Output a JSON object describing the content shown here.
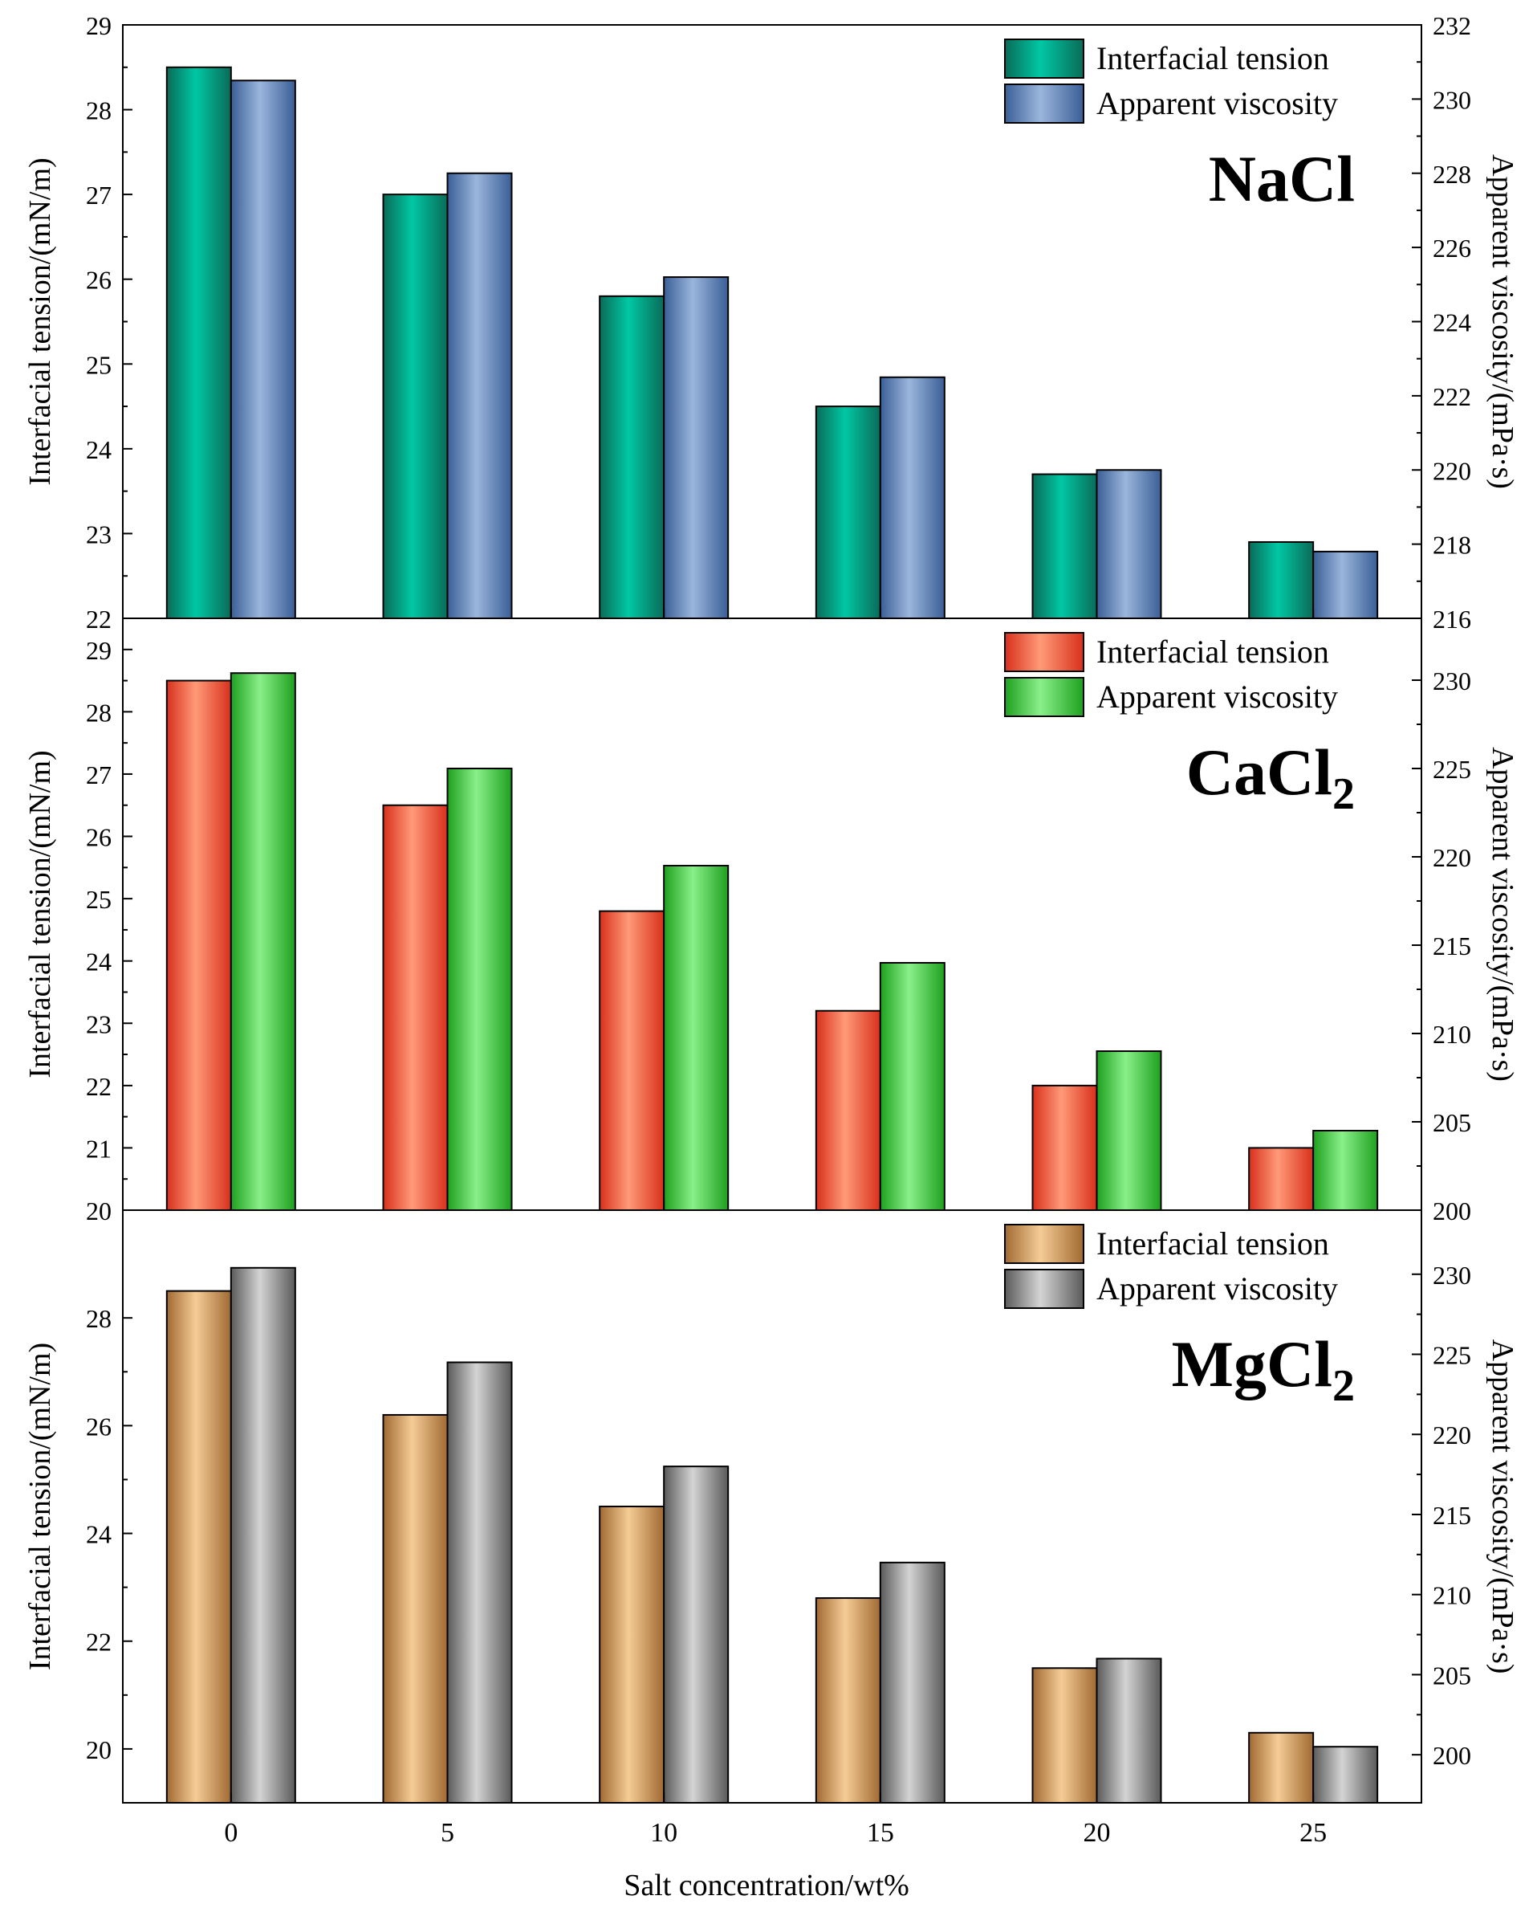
{
  "xlabel": "Salt concentration/wt%",
  "categories": [
    "0",
    "5",
    "10",
    "15",
    "20",
    "25"
  ],
  "chart_data": [
    {
      "type": "bar",
      "title": "NaCl",
      "title_sub": "",
      "categories": [
        "0",
        "5",
        "10",
        "15",
        "20",
        "25"
      ],
      "xlabel": "Salt concentration/wt%",
      "ylabel_left": "Interfacial tension/(mN/m)",
      "ylabel_right": "Apparent viscosity/(mPa·s)",
      "ylim_left": [
        22,
        29
      ],
      "ylim_right": [
        216,
        232
      ],
      "yticks_left": [
        22,
        23,
        24,
        25,
        26,
        27,
        28,
        29
      ],
      "yticks_right": [
        216,
        218,
        220,
        222,
        224,
        226,
        228,
        230,
        232
      ],
      "legend_position": "top-right",
      "series": [
        {
          "name": "Interfacial tension",
          "axis": "left",
          "values": [
            28.5,
            27.0,
            25.8,
            24.5,
            23.7,
            22.9
          ],
          "colors": [
            "#0a6b58",
            "#00c8a4",
            "#0a6b58"
          ]
        },
        {
          "name": "Apparent viscosity",
          "axis": "right",
          "values": [
            230.5,
            228.0,
            225.2,
            222.5,
            220.0,
            217.8
          ],
          "colors": [
            "#3a5e96",
            "#9ab6dc",
            "#3a5e96"
          ]
        }
      ]
    },
    {
      "type": "bar",
      "title": "CaCl",
      "title_sub": "2",
      "categories": [
        "0",
        "5",
        "10",
        "15",
        "20",
        "25"
      ],
      "xlabel": "Salt concentration/wt%",
      "ylabel_left": "Interfacial tension/(mN/m)",
      "ylabel_right": "Apparent viscosity/(mPa·s)",
      "ylim_left": [
        20,
        29.5
      ],
      "ylim_right": [
        200,
        233.5
      ],
      "yticks_left": [
        20,
        21,
        22,
        23,
        24,
        25,
        26,
        27,
        28,
        29
      ],
      "yticks_right": [
        200,
        205,
        210,
        215,
        220,
        225,
        230
      ],
      "legend_position": "top-right",
      "series": [
        {
          "name": "Interfacial tension",
          "axis": "left",
          "values": [
            28.5,
            26.5,
            24.8,
            23.2,
            22.0,
            21.0
          ],
          "colors": [
            "#d8301c",
            "#ff9a78",
            "#d8301c"
          ]
        },
        {
          "name": "Apparent viscosity",
          "axis": "right",
          "values": [
            230.4,
            225.0,
            219.5,
            214.0,
            209.0,
            204.5
          ],
          "colors": [
            "#1ea01e",
            "#8af08a",
            "#1ea01e"
          ]
        }
      ]
    },
    {
      "type": "bar",
      "title": "MgCl",
      "title_sub": "2",
      "categories": [
        "0",
        "5",
        "10",
        "15",
        "20",
        "25"
      ],
      "xlabel": "Salt concentration/wt%",
      "ylabel_left": "Interfacial tension/(mN/m)",
      "ylabel_right": "Apparent viscosity/(mPa·s)",
      "ylim_left": [
        19,
        30
      ],
      "ylim_right": [
        197,
        234
      ],
      "yticks_left": [
        20,
        22,
        24,
        26,
        28
      ],
      "yticks_right": [
        200,
        205,
        210,
        215,
        220,
        225,
        230
      ],
      "legend_position": "top-right",
      "series": [
        {
          "name": "Interfacial tension",
          "axis": "left",
          "values": [
            28.5,
            26.2,
            24.5,
            22.8,
            21.5,
            20.3
          ],
          "colors": [
            "#a06a32",
            "#f6cc96",
            "#a06a32"
          ]
        },
        {
          "name": "Apparent viscosity",
          "axis": "right",
          "values": [
            230.4,
            224.5,
            218.0,
            212.0,
            206.0,
            200.5
          ],
          "colors": [
            "#5a5a5a",
            "#d4d4d4",
            "#5a5a5a"
          ]
        }
      ]
    }
  ]
}
